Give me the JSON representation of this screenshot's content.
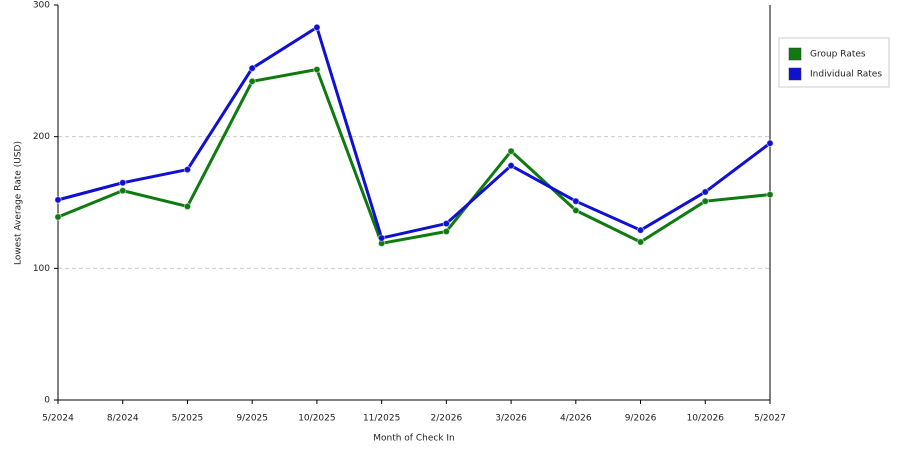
{
  "chart_data": {
    "type": "line",
    "x_label": "Month of Check In",
    "y_label": "Lowest Average Rate (USD)",
    "categories": [
      "5/2024",
      "8/2024",
      "5/2025",
      "9/2025",
      "10/2025",
      "11/2025",
      "2/2026",
      "3/2026",
      "4/2026",
      "9/2026",
      "10/2026",
      "5/2027"
    ],
    "series": [
      {
        "name": "Group Rates",
        "color": "#0f7a0f",
        "values": [
          139,
          159,
          147,
          242,
          251,
          119,
          128,
          189,
          144,
          120,
          151,
          156
        ]
      },
      {
        "name": "Individual Rates",
        "color": "#1010d0",
        "values": [
          152,
          165,
          175,
          252,
          283,
          123,
          134,
          178,
          151,
          129,
          158,
          195
        ]
      }
    ],
    "ylim": [
      0,
      300
    ],
    "yticks": [
      0,
      100,
      200,
      300
    ],
    "grid": true,
    "legend": "right"
  }
}
